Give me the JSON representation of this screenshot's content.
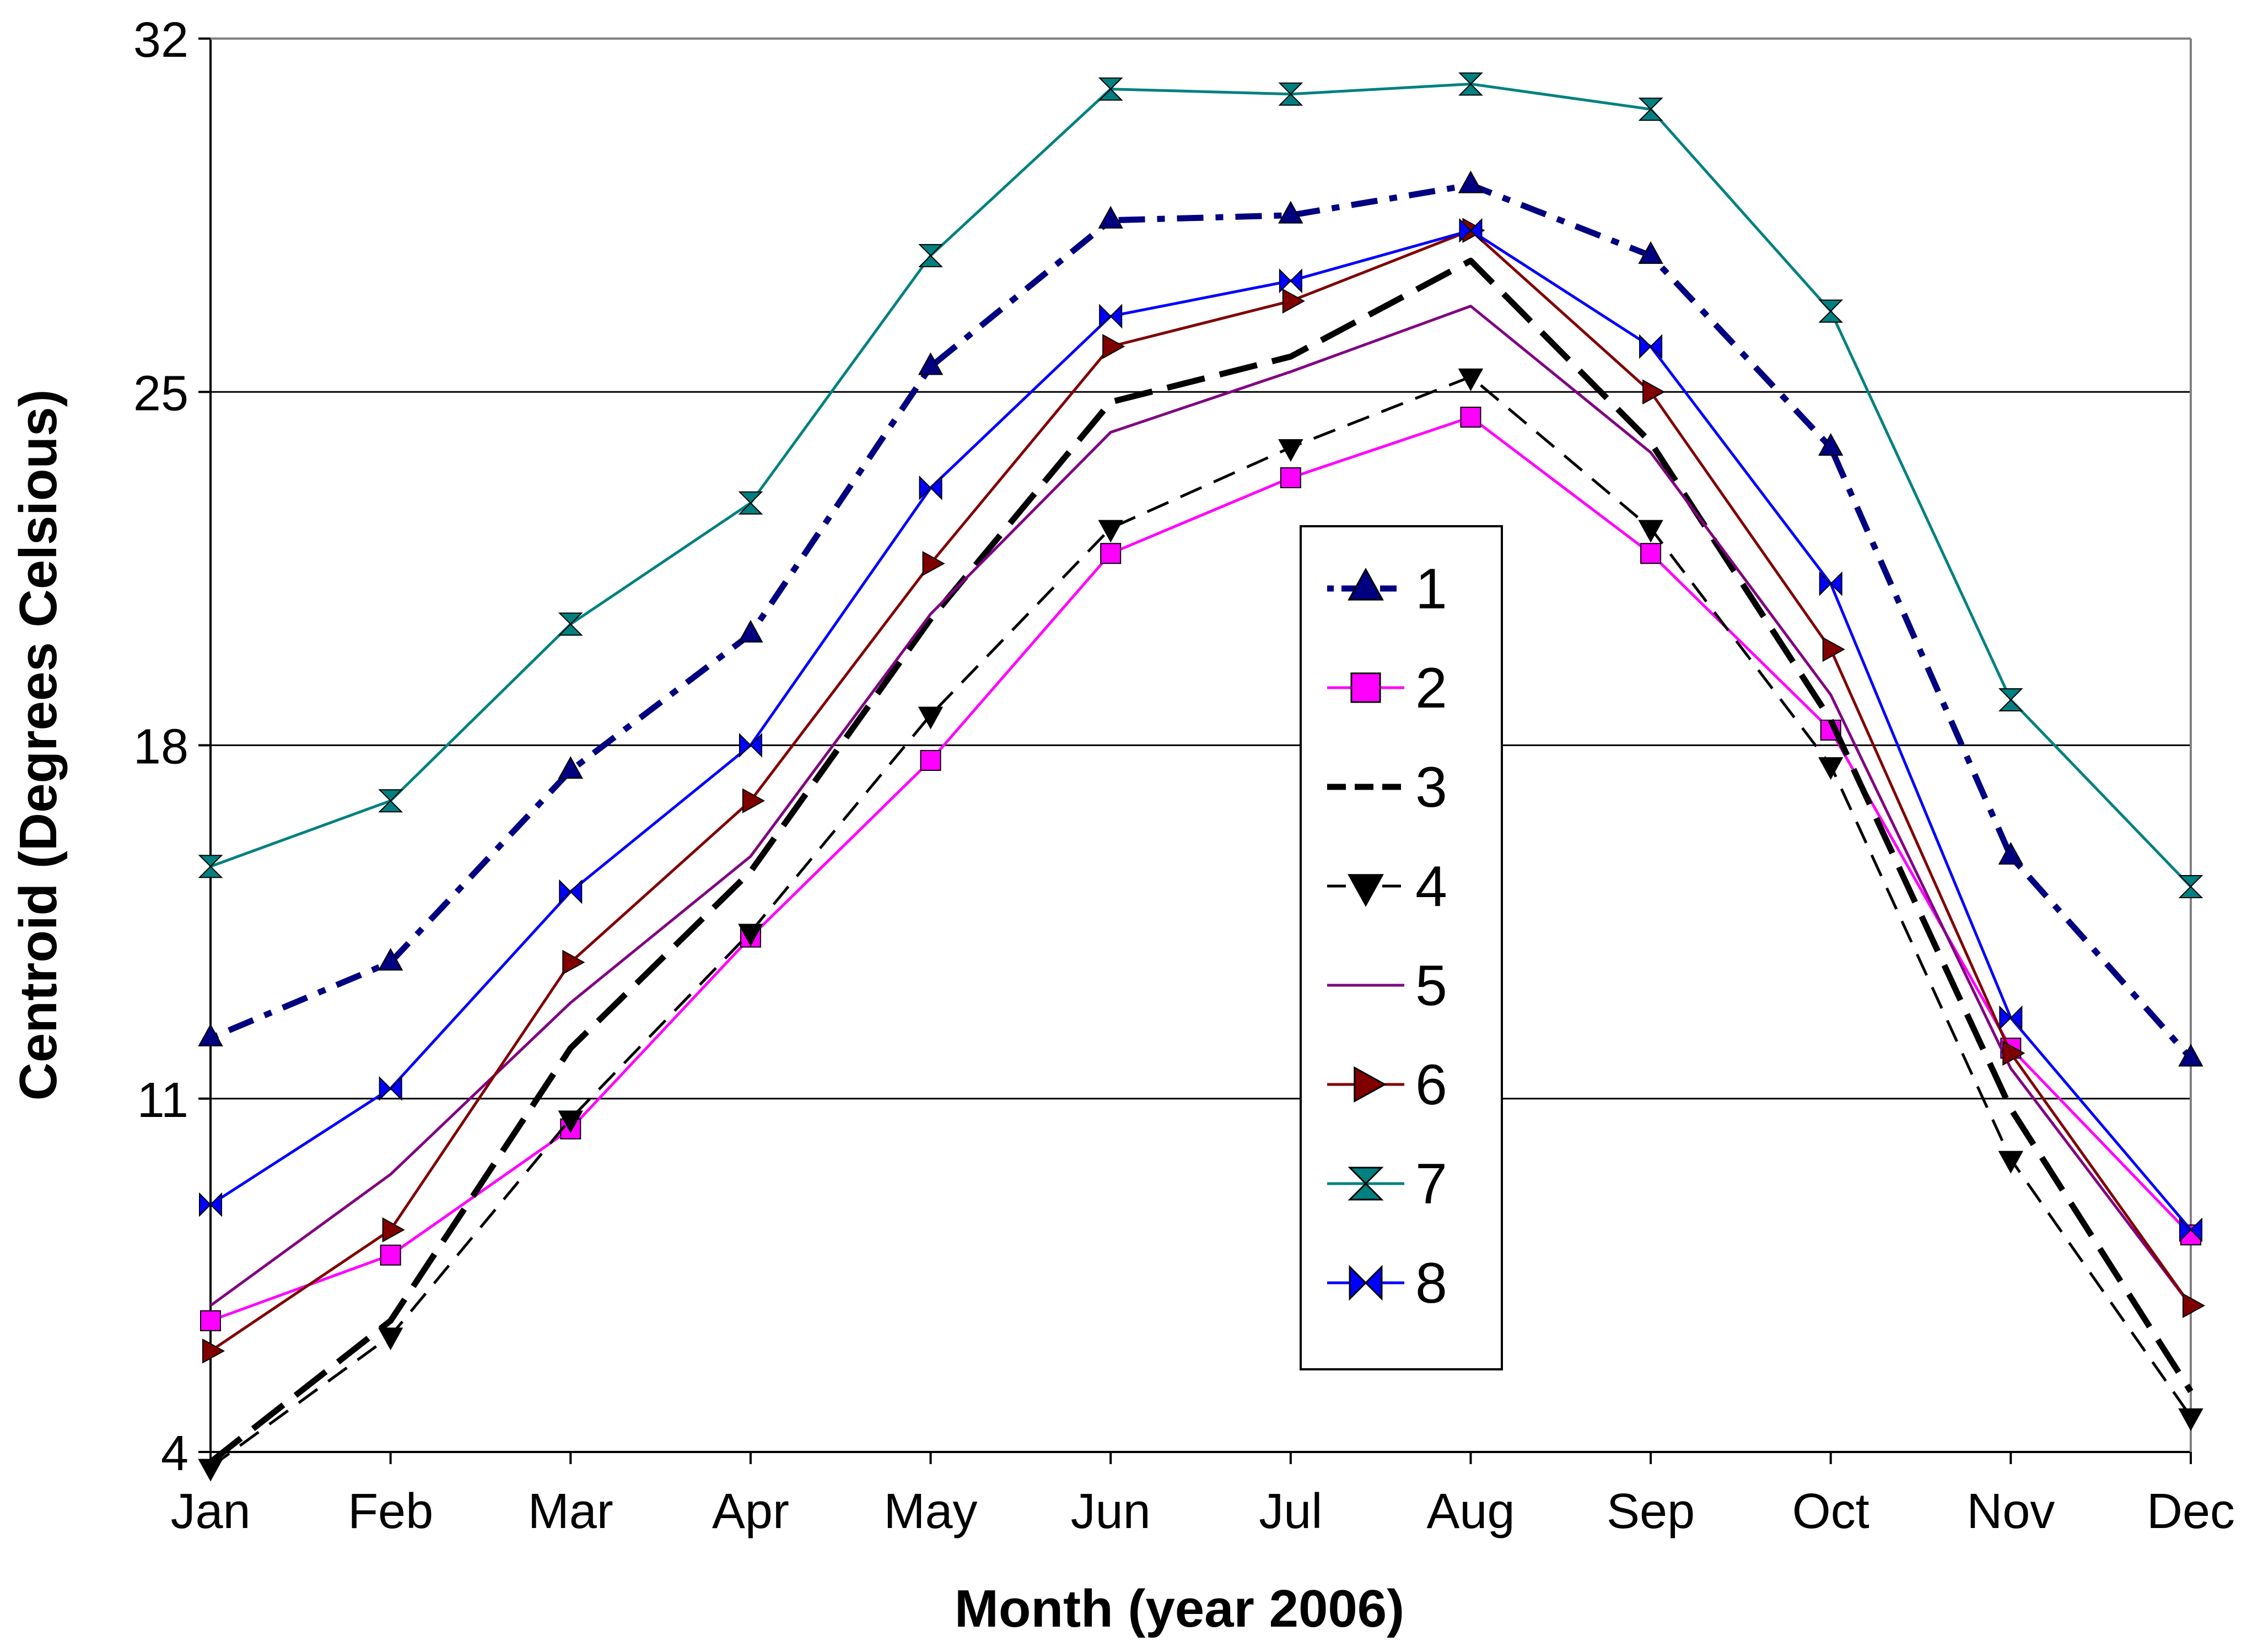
{
  "chart_data": {
    "type": "line",
    "title": "",
    "xlabel": "Month (year 2006)",
    "ylabel": "Centroid (Degrees Celsious)",
    "categories": [
      "Jan",
      "Feb",
      "Mar",
      "Apr",
      "May",
      "Jun",
      "Jul",
      "Aug",
      "Sep",
      "Oct",
      "Nov",
      "Dec"
    ],
    "ylim": [
      4,
      32
    ],
    "yticks": [
      4,
      11,
      18,
      25,
      32
    ],
    "grid": "horizontal",
    "legend_position": "center-right",
    "series": [
      {
        "name": "1",
        "color": "#000080",
        "dash": "dashdot",
        "marker": "triangle-up",
        "width": "heavy",
        "values": [
          12.2,
          13.7,
          17.5,
          20.2,
          25.5,
          28.4,
          28.5,
          29.1,
          27.7,
          23.9,
          15.8,
          11.8
        ]
      },
      {
        "name": "2",
        "color": "#ff00ff",
        "dash": "solid",
        "marker": "square",
        "width": "normal",
        "values": [
          6.6,
          7.9,
          10.4,
          14.2,
          17.7,
          21.8,
          23.3,
          24.5,
          21.8,
          18.3,
          12.0,
          8.3
        ]
      },
      {
        "name": "3",
        "color": "#000000",
        "dash": "longdash",
        "marker": "none",
        "width": "heavy",
        "values": [
          3.8,
          6.6,
          12.0,
          15.5,
          20.5,
          24.8,
          25.7,
          27.6,
          24.0,
          18.5,
          10.8,
          5.2
        ]
      },
      {
        "name": "4",
        "color": "#000000",
        "dash": "dash",
        "marker": "triangle-down",
        "width": "normal",
        "values": [
          3.7,
          6.3,
          10.6,
          14.3,
          18.6,
          22.3,
          23.9,
          25.3,
          22.3,
          17.6,
          9.8,
          4.7
        ]
      },
      {
        "name": "5",
        "color": "#800080",
        "dash": "solid",
        "marker": "none",
        "width": "normal",
        "values": [
          6.9,
          9.5,
          12.9,
          15.8,
          20.6,
          24.2,
          25.4,
          26.7,
          23.8,
          19.0,
          11.6,
          6.9
        ]
      },
      {
        "name": "6",
        "color": "#800000",
        "dash": "solid",
        "marker": "triangle-right",
        "width": "normal",
        "values": [
          6.0,
          8.4,
          13.7,
          16.9,
          21.6,
          25.9,
          26.8,
          28.2,
          25.0,
          19.9,
          11.9,
          6.9
        ]
      },
      {
        "name": "7",
        "color": "#008080",
        "dash": "solid",
        "marker": "hourglass",
        "width": "normal",
        "values": [
          15.6,
          16.9,
          20.4,
          22.8,
          27.7,
          31.0,
          30.9,
          31.1,
          30.6,
          26.6,
          18.9,
          15.2
        ]
      },
      {
        "name": "8",
        "color": "#0000ff",
        "dash": "solid",
        "marker": "bowtie",
        "width": "normal",
        "values": [
          8.9,
          11.2,
          15.1,
          18.0,
          23.1,
          26.5,
          27.2,
          28.2,
          25.9,
          21.2,
          12.6,
          8.4
        ]
      }
    ]
  }
}
